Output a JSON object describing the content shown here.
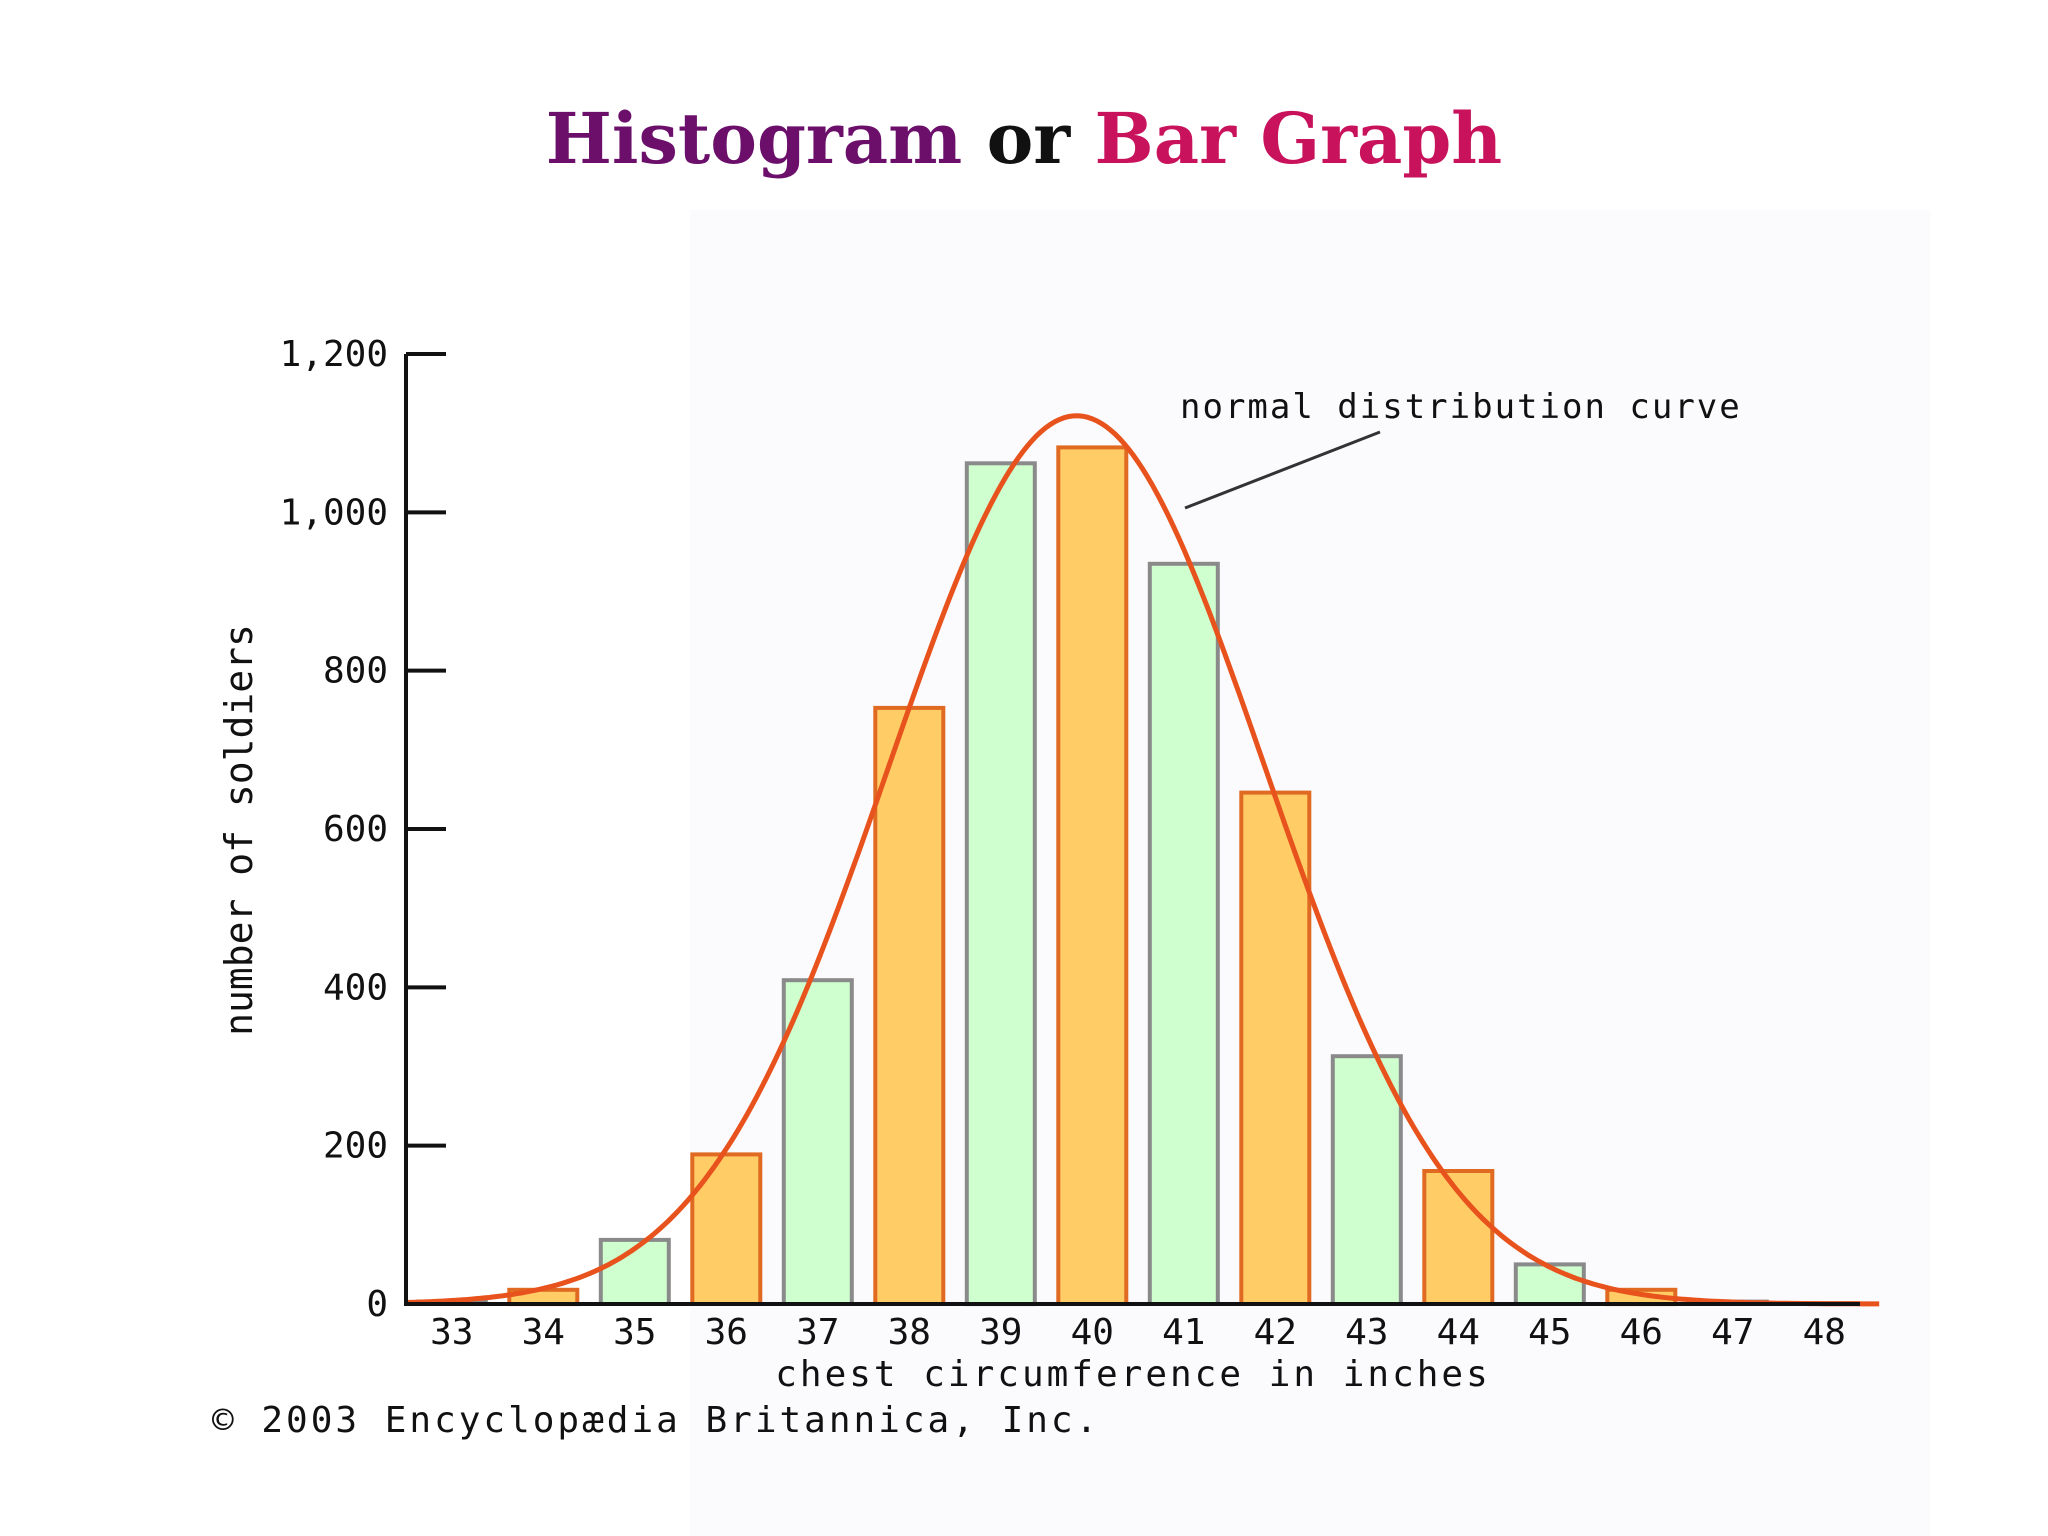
{
  "title": {
    "part1": "Histogram",
    "part2": "or",
    "part3": "Bar Graph",
    "colors": {
      "part1": "#6b0f6b",
      "part2": "#111111",
      "part3": "#c8125c"
    }
  },
  "chart_data": {
    "type": "bar",
    "xlabel": "chest circumference in inches",
    "ylabel": "number of soldiers",
    "ylim": [
      0,
      1200
    ],
    "yticks": [
      0,
      200,
      400,
      600,
      800,
      1000,
      1200
    ],
    "ytick_labels": [
      "0",
      "200",
      "400",
      "600",
      "800",
      "1,000",
      "1,200"
    ],
    "categories": [
      "33",
      "34",
      "35",
      "36",
      "37",
      "38",
      "39",
      "40",
      "41",
      "42",
      "43",
      "44",
      "45",
      "46",
      "47",
      "48"
    ],
    "values": [
      3,
      18,
      81,
      189,
      409,
      753,
      1062,
      1082,
      935,
      646,
      313,
      168,
      50,
      18,
      3,
      1
    ],
    "bar_colors": [
      "#cfffcf",
      "#ffcc66"
    ],
    "bar_edge_colors": [
      "#8a8a8a",
      "#e06a22"
    ],
    "curve": {
      "label": "normal distribution curve",
      "type": "normal",
      "mean": 39.83,
      "sd": 2.05,
      "peak": 1122,
      "color": "#e8521c"
    },
    "grid": false,
    "legend": "none"
  },
  "copyright": "© 2003 Encyclopædia Britannica, Inc."
}
